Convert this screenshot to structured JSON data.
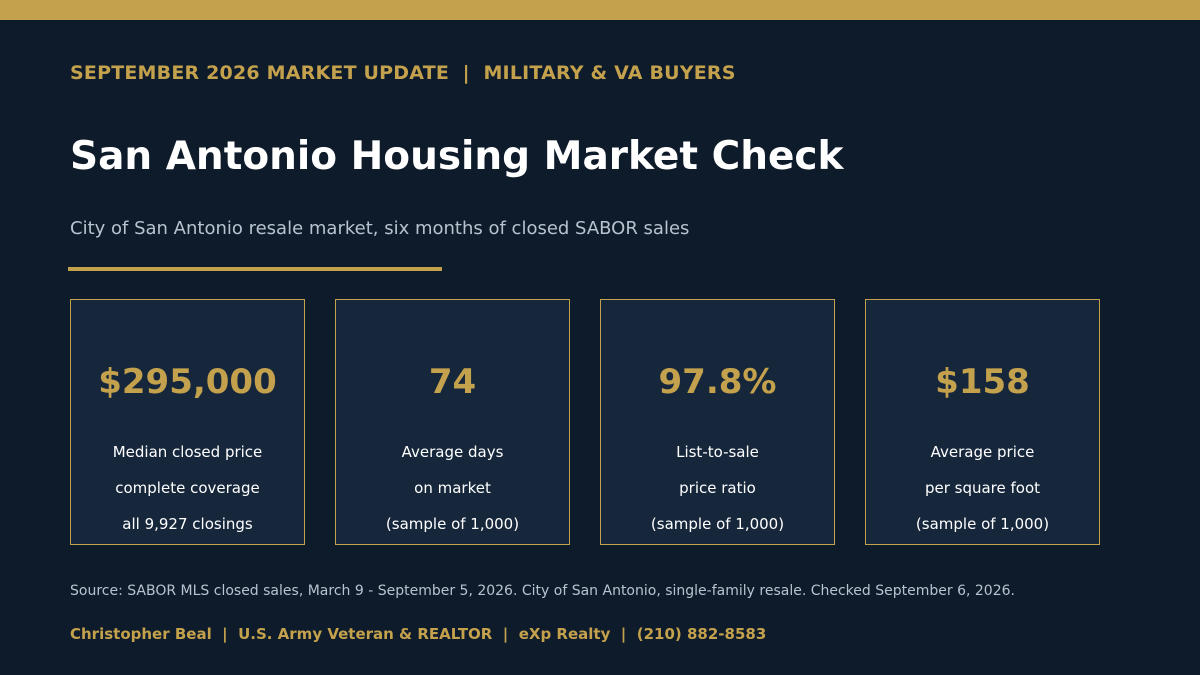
{
  "header": {
    "kicker": "SEPTEMBER 2026 MARKET UPDATE  |  MILITARY & VA BUYERS",
    "title": "San Antonio Housing Market Check",
    "subtitle": "City of San Antonio resale market, six months of closed SABOR sales"
  },
  "cards": [
    {
      "value": "$295,000",
      "lines": [
        "Median closed price",
        "complete coverage",
        "all 9,927 closings"
      ]
    },
    {
      "value": "74",
      "lines": [
        "Average days",
        "on market",
        "(sample of 1,000)"
      ]
    },
    {
      "value": "97.8%",
      "lines": [
        "List-to-sale",
        "price ratio",
        "(sample of 1,000)"
      ]
    },
    {
      "value": "$158",
      "lines": [
        "Average price",
        "per square foot",
        "(sample of 1,000)"
      ]
    }
  ],
  "source": "Source: SABOR MLS closed sales, March 9 - September 5, 2026. City of San Antonio, single-family resale. Checked September 6, 2026.",
  "footer": "Christopher Beal  |  U.S. Army Veteran & REALTOR  |  eXp Realty  |  (210) 882-8583",
  "colors": {
    "background": "#0e1b2b",
    "card_background": "#16273c",
    "accent_gold": "#c4a14c",
    "text_white": "#ffffff",
    "text_muted": "#b9c3cf"
  }
}
